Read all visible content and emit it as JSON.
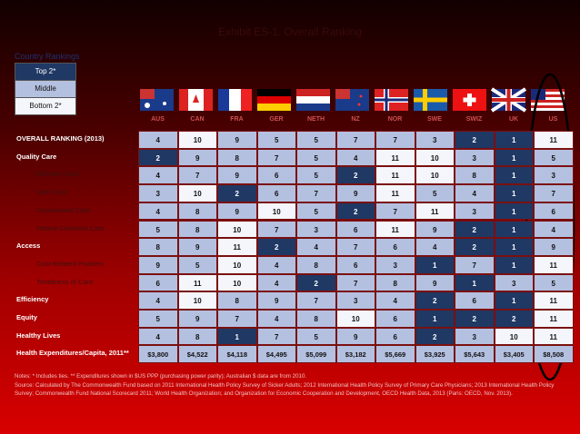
{
  "header": {
    "title": "Exhibit ES-1. Overall Ranking",
    "legend_title": "Country Rankings",
    "legend": [
      "Top 2*",
      "Middle",
      "Bottom 2*"
    ]
  },
  "table": {
    "columns": [
      "AUS",
      "CAN",
      "FRA",
      "GER",
      "NETH",
      "NZ",
      "NOR",
      "SWE",
      "SWIZ",
      "UK",
      "US"
    ],
    "rows": [
      {
        "label": "OVERALL RANKING (2013)",
        "values": [
          4,
          10,
          9,
          5,
          5,
          7,
          7,
          3,
          2,
          1,
          11
        ]
      },
      {
        "label": "Quality Care",
        "values": [
          2,
          9,
          8,
          7,
          5,
          4,
          11,
          10,
          3,
          1,
          5
        ],
        "subrows": [
          {
            "label": "Effective Care",
            "values": [
              4,
              7,
              9,
              6,
              5,
              2,
              11,
              10,
              8,
              1,
              3
            ]
          },
          {
            "label": "Safe Care",
            "values": [
              3,
              10,
              2,
              6,
              7,
              9,
              11,
              5,
              4,
              1,
              7
            ]
          },
          {
            "label": "Coordinated Care",
            "values": [
              4,
              8,
              9,
              10,
              5,
              2,
              7,
              11,
              3,
              1,
              6
            ]
          },
          {
            "label": "Patient-Centered Care",
            "values": [
              5,
              8,
              10,
              7,
              3,
              6,
              11,
              9,
              2,
              1,
              4
            ]
          }
        ]
      },
      {
        "label": "Access",
        "values": [
          8,
          9,
          11,
          2,
          4,
          7,
          6,
          4,
          2,
          1,
          9
        ],
        "subrows": [
          {
            "label": "Cost-Related Problem",
            "values": [
              9,
              5,
              10,
              4,
              8,
              6,
              3,
              1,
              7,
              1,
              11
            ]
          },
          {
            "label": "Timeliness of Care",
            "values": [
              6,
              11,
              10,
              4,
              2,
              7,
              8,
              9,
              1,
              3,
              5
            ]
          }
        ]
      },
      {
        "label": "Efficiency",
        "values": [
          4,
          10,
          8,
          9,
          7,
          3,
          4,
          2,
          6,
          1,
          11
        ]
      },
      {
        "label": "Equity",
        "values": [
          5,
          9,
          7,
          4,
          8,
          10,
          6,
          1,
          2,
          2,
          11
        ]
      },
      {
        "label": "Healthy Lives",
        "values": [
          4,
          8,
          1,
          7,
          5,
          9,
          6,
          2,
          3,
          10,
          11
        ]
      },
      {
        "label": "Health Expenditures/Capita, 2011**",
        "values": [
          "$3,800",
          "$4,522",
          "$4,118",
          "$4,495",
          "$5,099",
          "$3,182",
          "$5,669",
          "$3,925",
          "$5,643",
          "$3,405",
          "$8,508"
        ]
      }
    ]
  },
  "notes": "Notes: * Includes ties. ** Expenditures shown in $US PPP (purchasing power parity); Australian $ data are from 2010.",
  "source": "Source: Calculated by The Commonwealth Fund based on 2011 International Health Policy Survey of Sicker Adults; 2012 International Health Policy Survey of Primary Care Physicians; 2013 International Health Policy Survey; Commonwealth Fund National Scorecard 2011; World Health Organization; and Organization for Economic Cooperation and Development, OECD Health Data, 2013 (Paris: OECD, Nov. 2013)."
}
